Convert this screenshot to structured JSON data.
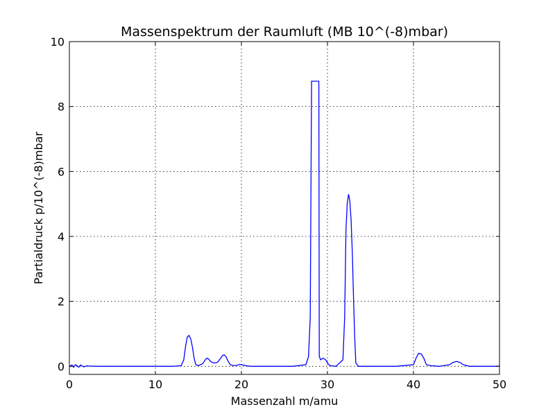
{
  "chart_data": {
    "type": "line",
    "title": "Massenspektrum der Raumluft (MB 10^(-8)mbar)",
    "xlabel": "Massenzahl m/amu",
    "ylabel": "Partialdruck p/10^(-8)mbar",
    "xlim": [
      0,
      50
    ],
    "ylim": [
      -0.25,
      10
    ],
    "xticks": [
      0,
      10,
      20,
      30,
      40,
      50
    ],
    "xtick_labels": [
      "0",
      "10",
      "20",
      "30",
      "40",
      "50"
    ],
    "yticks": [
      0,
      2,
      4,
      6,
      8,
      10
    ],
    "ytick_labels": [
      "0",
      "2",
      "4",
      "6",
      "8",
      "10"
    ],
    "grid": true,
    "colors": {
      "series": "#0000ff",
      "grid": "#000000",
      "background": "#ffffff"
    },
    "series": [
      {
        "x": [
          0,
          0.3,
          0.5,
          0.7,
          0.9,
          1.1,
          1.3,
          1.5,
          1.7,
          2.0,
          3,
          5,
          8,
          10,
          12,
          13.0,
          13.3,
          13.5,
          13.7,
          13.9,
          14.1,
          14.3,
          14.5,
          14.7,
          15.0,
          15.5,
          15.8,
          16.0,
          16.2,
          16.4,
          16.8,
          17.2,
          17.6,
          17.8,
          18.0,
          18.2,
          18.4,
          18.7,
          19.0,
          19.5,
          19.8,
          20.0,
          20.2,
          20.5,
          21,
          22,
          24,
          26,
          27.5,
          27.8,
          28.0,
          28.15,
          28.2,
          29.0,
          29.05,
          29.2,
          29.5,
          29.8,
          30.0,
          30.3,
          31,
          31.8,
          32.0,
          32.15,
          32.3,
          32.45,
          32.6,
          32.75,
          32.9,
          33.0,
          33.15,
          33.3,
          33.6,
          34,
          36,
          38,
          40.0,
          40.3,
          40.6,
          40.9,
          41.2,
          41.5,
          42,
          43,
          44.2,
          44.6,
          45.0,
          45.4,
          45.8,
          46.5,
          48,
          50
        ],
        "y": [
          0.0,
          0.04,
          -0.03,
          0.05,
          0.02,
          -0.03,
          0.04,
          0.01,
          -0.02,
          0.01,
          0.0,
          0.0,
          0.0,
          0.0,
          0.0,
          0.02,
          0.2,
          0.6,
          0.9,
          0.95,
          0.85,
          0.6,
          0.25,
          0.05,
          0.02,
          0.08,
          0.2,
          0.25,
          0.22,
          0.15,
          0.1,
          0.12,
          0.25,
          0.33,
          0.35,
          0.3,
          0.18,
          0.05,
          0.02,
          0.03,
          0.06,
          0.05,
          0.04,
          0.02,
          0.0,
          0.0,
          0.0,
          0.0,
          0.05,
          0.3,
          1.5,
          8.78,
          8.78,
          8.78,
          0.3,
          0.2,
          0.25,
          0.2,
          0.1,
          0.02,
          0.0,
          0.2,
          1.5,
          4.2,
          5.0,
          5.3,
          5.1,
          4.5,
          3.4,
          2.4,
          1.0,
          0.1,
          0.0,
          0.0,
          0.0,
          0.0,
          0.05,
          0.25,
          0.4,
          0.38,
          0.25,
          0.05,
          0.02,
          0.0,
          0.05,
          0.12,
          0.15,
          0.12,
          0.05,
          0.0,
          0.0,
          0.0
        ]
      }
    ]
  }
}
